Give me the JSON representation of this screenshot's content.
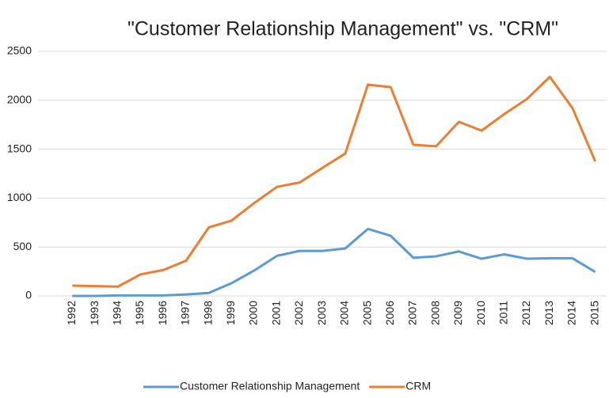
{
  "chart_data": {
    "type": "line",
    "title": "\"Customer Relationship Management\" vs. \"CRM\"",
    "categories": [
      "1992",
      "1993",
      "1994",
      "1995",
      "1996",
      "1997",
      "1998",
      "1999",
      "2000",
      "2001",
      "2002",
      "2003",
      "2004",
      "2005",
      "2006",
      "2007",
      "2008",
      "2009",
      "2010",
      "2011",
      "2012",
      "2013",
      "2014",
      "2015"
    ],
    "series": [
      {
        "name": "Customer Relationship Management",
        "color": "#5b9bd5",
        "values": [
          0,
          0,
          5,
          5,
          5,
          15,
          30,
          130,
          260,
          410,
          460,
          460,
          485,
          685,
          615,
          390,
          405,
          455,
          380,
          425,
          380,
          385,
          385,
          245
        ]
      },
      {
        "name": "CRM",
        "color": "#ed7d31",
        "values": [
          105,
          100,
          95,
          220,
          265,
          360,
          700,
          770,
          950,
          1115,
          1160,
          1310,
          1455,
          2160,
          2135,
          1545,
          1530,
          1780,
          1690,
          1860,
          2015,
          2240,
          1920,
          1375
        ]
      }
    ],
    "ylim": [
      0,
      2500
    ],
    "yticks": [
      0,
      500,
      1000,
      1500,
      2000,
      2500
    ],
    "grid": true,
    "legend": "bottom"
  }
}
